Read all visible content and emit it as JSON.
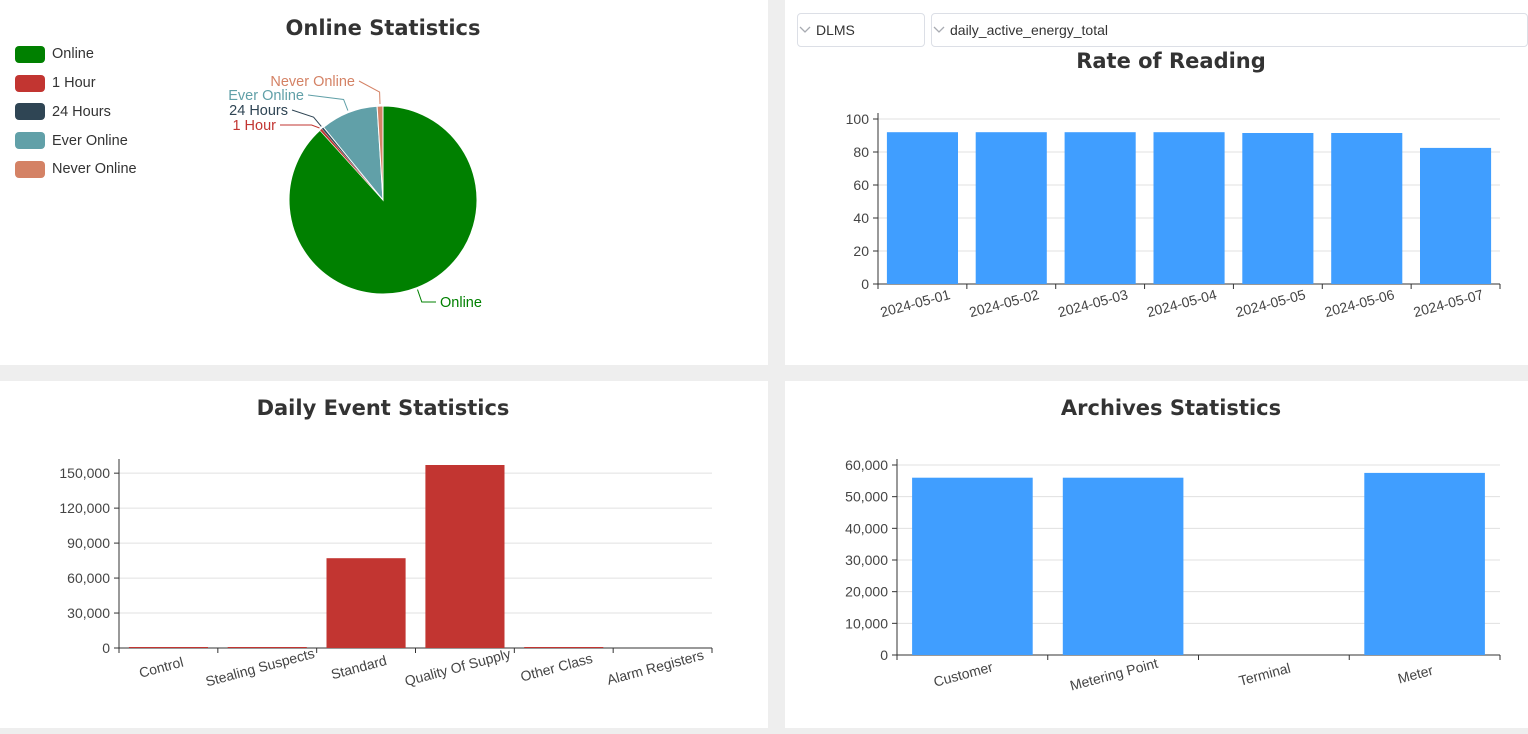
{
  "online_statistics": {
    "title": "Online Statistics",
    "legend": [
      {
        "label": "Online",
        "color": "#008000"
      },
      {
        "label": "1 Hour",
        "color": "#c23531"
      },
      {
        "label": "24 Hours",
        "color": "#2f4554"
      },
      {
        "label": "Ever Online",
        "color": "#61a0a8"
      },
      {
        "label": "Never Online",
        "color": "#d48265"
      }
    ],
    "chart_data": {
      "type": "pie",
      "title": "Online Statistics",
      "slices": [
        {
          "label": "Online",
          "value": 88.3,
          "color": "#008000"
        },
        {
          "label": "1 Hour",
          "value": 0.4,
          "color": "#c23531"
        },
        {
          "label": "24 Hours",
          "value": 0.4,
          "color": "#2f4554"
        },
        {
          "label": "Ever Online",
          "value": 9.9,
          "color": "#61a0a8"
        },
        {
          "label": "Never Online",
          "value": 1.0,
          "color": "#d48265"
        }
      ]
    }
  },
  "rate_of_reading": {
    "protocol_select": {
      "value": "DLMS",
      "icon": "chevron-down-icon"
    },
    "metric_select": {
      "value": "daily_active_energy_total",
      "icon": "chevron-down-icon"
    },
    "title": "Rate of Reading",
    "chart_data": {
      "type": "bar",
      "title": "Rate of Reading",
      "categories": [
        "2024-05-01",
        "2024-05-02",
        "2024-05-03",
        "2024-05-04",
        "2024-05-05",
        "2024-05-06",
        "2024-05-07"
      ],
      "values": [
        92,
        92,
        92,
        92,
        91.5,
        91.5,
        82.5
      ],
      "ylim": [
        0,
        100
      ],
      "yticks": [
        "0",
        "20",
        "40",
        "60",
        "80",
        "100"
      ],
      "bar_color": "#409eff",
      "grid": true
    }
  },
  "daily_event_statistics": {
    "title": "Daily Event Statistics",
    "chart_data": {
      "type": "bar",
      "title": "Daily Event Statistics",
      "categories": [
        "Control",
        "Stealing Suspects",
        "Standard",
        "Quality Of Supply",
        "Other Class",
        "Alarm Registers"
      ],
      "values": [
        300,
        300,
        77000,
        157000,
        400,
        0
      ],
      "ylim": [
        0,
        157000
      ],
      "yticks": [
        "0",
        "30,000",
        "60,000",
        "90,000",
        "120,000",
        "150,000"
      ],
      "ytick_values": [
        0,
        30000,
        60000,
        90000,
        120000,
        150000
      ],
      "bar_color": "#c23531",
      "grid": true
    }
  },
  "archives_statistics": {
    "title": "Archives Statistics",
    "chart_data": {
      "type": "bar",
      "title": "Archives Statistics",
      "categories": [
        "Customer",
        "Metering Point",
        "Terminal",
        "Meter"
      ],
      "values": [
        56000,
        56000,
        0,
        57500
      ],
      "ylim": [
        0,
        60000
      ],
      "yticks": [
        "0",
        "10,000",
        "20,000",
        "30,000",
        "40,000",
        "50,000",
        "60,000"
      ],
      "bar_color": "#409eff",
      "grid": true
    }
  }
}
